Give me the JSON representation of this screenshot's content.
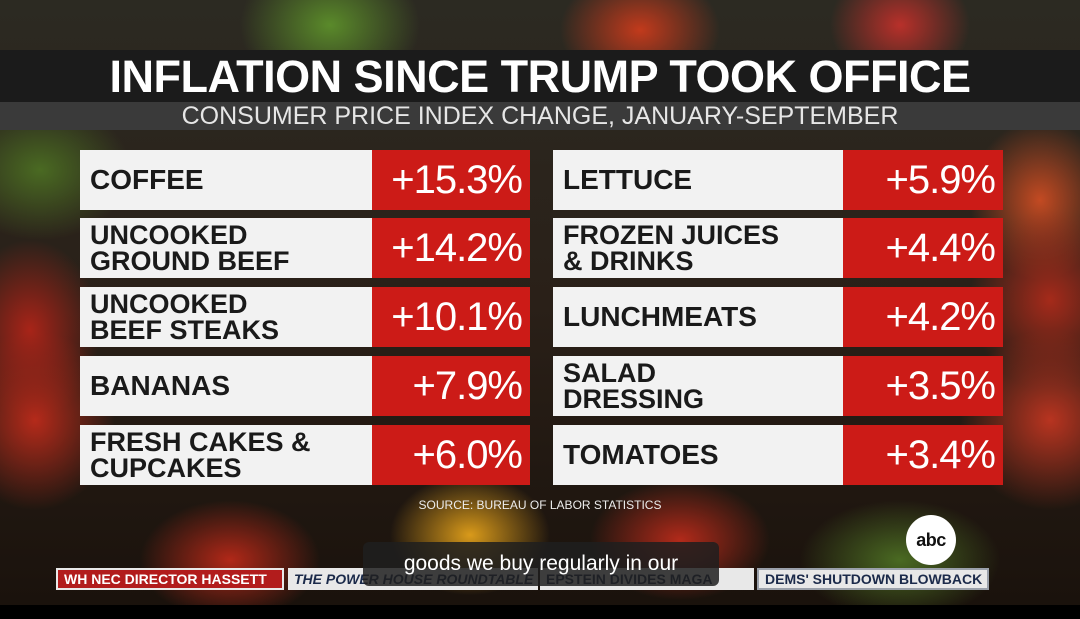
{
  "header": {
    "title": "INFLATION SINCE TRUMP TOOK OFFICE",
    "subtitle": "CONSUMER PRICE INDEX CHANGE, JANUARY-SEPTEMBER"
  },
  "items_left": [
    {
      "label": "COFFEE",
      "value": "+15.3%"
    },
    {
      "label": "UNCOOKED\nGROUND BEEF",
      "value": "+14.2%"
    },
    {
      "label": "UNCOOKED\nBEEF STEAKS",
      "value": "+10.1%"
    },
    {
      "label": "BANANAS",
      "value": "+7.9%"
    },
    {
      "label": "FRESH CAKES &\nCUPCAKES",
      "value": "+6.0%"
    }
  ],
  "items_right": [
    {
      "label": "LETTUCE",
      "value": "+5.9%"
    },
    {
      "label": "FROZEN JUICES\n& DRINKS",
      "value": "+4.4%"
    },
    {
      "label": "LUNCHMEATS",
      "value": "+4.2%"
    },
    {
      "label": "SALAD\nDRESSING",
      "value": "+3.5%"
    },
    {
      "label": "TOMATOES",
      "value": "+3.4%"
    }
  ],
  "source": "SOURCE: BUREAU OF LABOR STATISTICS",
  "network": "abc",
  "caption": "goods we buy regularly in our",
  "ticker": {
    "left": "WH NEC DIRECTOR HASSETT",
    "middle_1": "THE POWER HOUSE ROUNDTABLE",
    "middle_2": "EPSTEIN DIVIDES MAGA",
    "right": "DEMS' SHUTDOWN BLOWBACK"
  },
  "colors": {
    "accent_red": "#cc1b17",
    "label_bg": "#f2f2f2",
    "title_bar": "#1b1b1b"
  }
}
